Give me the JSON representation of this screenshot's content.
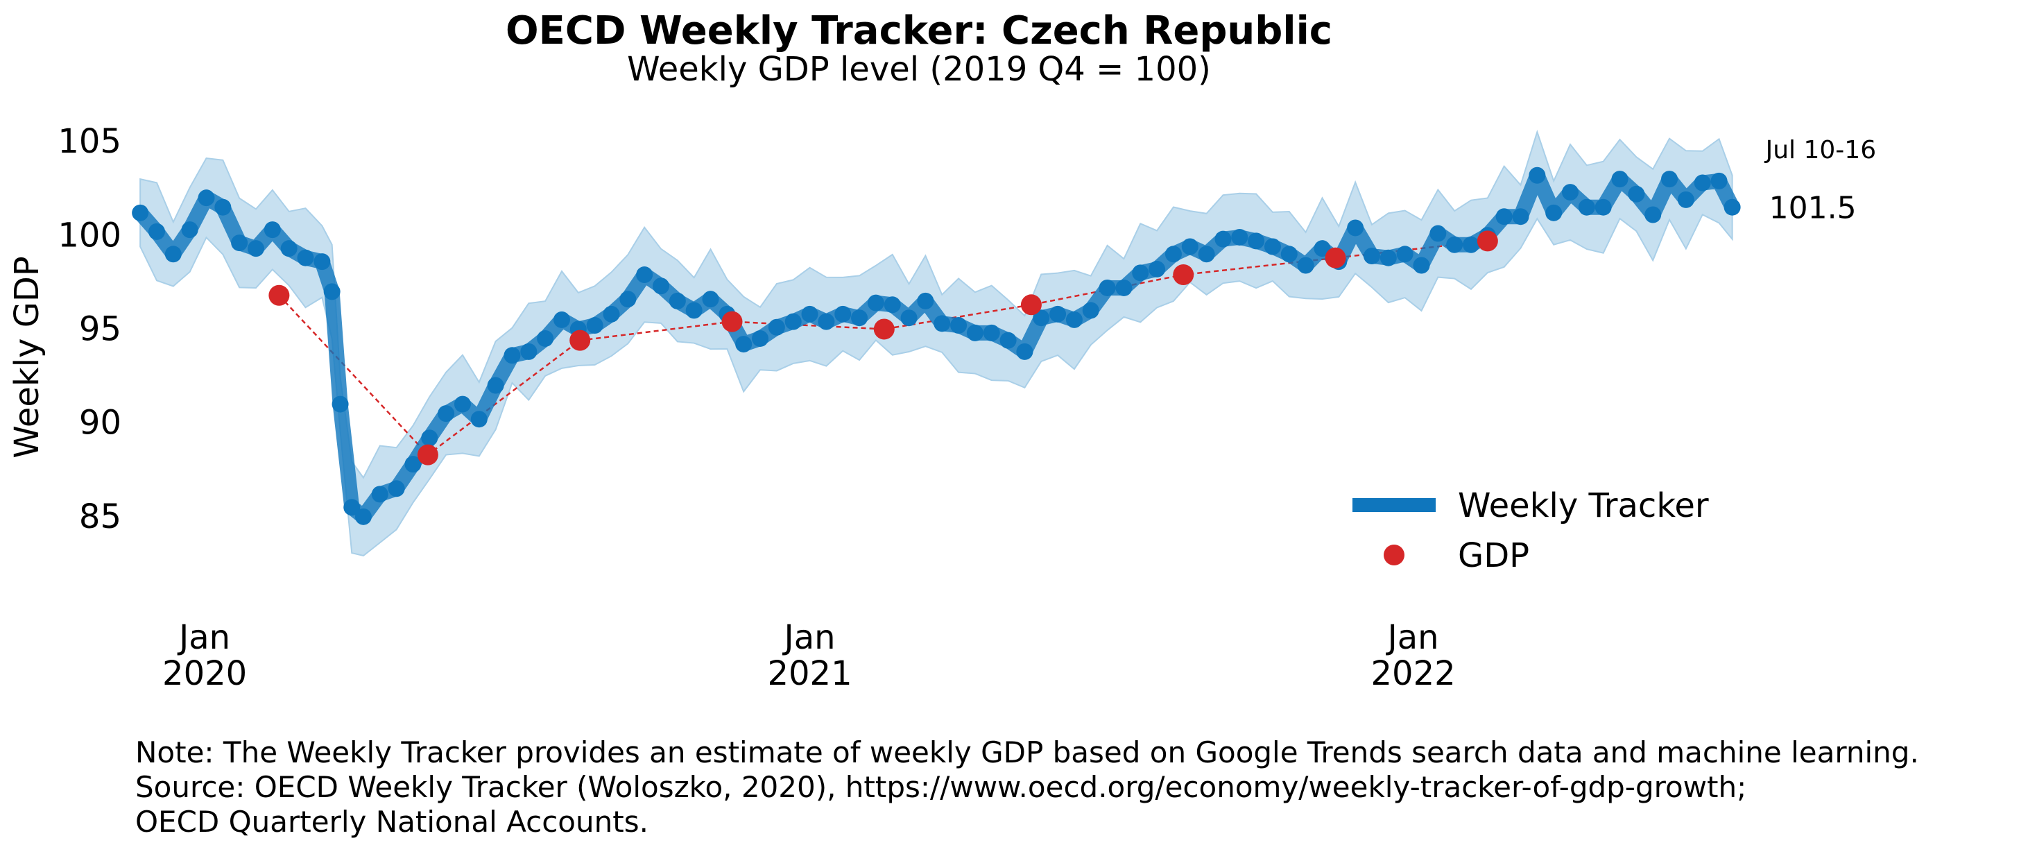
{
  "title": "OECD Weekly Tracker: Czech Republic",
  "subtitle": "Weekly GDP level (2019 Q4 = 100)",
  "notes": [
    "Note: The Weekly Tracker provides an estimate of weekly GDP based on Google Trends search data and machine learning.",
    "Source: OECD Weekly Tracker (Woloszko, 2020), https://www.oecd.org/economy/weekly-tracker-of-gdp-growth;",
    "OECD Quarterly National Accounts."
  ],
  "colors": {
    "tracker": "#0f76bd",
    "band": "#c7e0f0",
    "band_edge": "#a9cfe8",
    "gdp": "#d62728"
  },
  "chart_data": {
    "type": "line",
    "ylabel": "Weekly GDP",
    "xlim": [
      "2019-11-20",
      "2022-07-14"
    ],
    "ylim": [
      80,
      107
    ],
    "yticks": [
      85,
      90,
      95,
      100,
      105
    ],
    "xticks": [
      {
        "date": "2020-01-01",
        "label1": "Jan",
        "label2": "2020"
      },
      {
        "date": "2021-01-01",
        "label1": "Jan",
        "label2": "2021"
      },
      {
        "date": "2022-01-01",
        "label1": "Jan",
        "label2": "2022"
      }
    ],
    "last_point_annotation": {
      "period": "Jul 10-16",
      "value": "101.5"
    },
    "legend": {
      "position": "lower-right",
      "entries": [
        "Weekly Tracker",
        "GDP"
      ]
    },
    "series": [
      {
        "name": "Weekly Tracker",
        "kind": "line_with_band",
        "points": [
          [
            "2019-11-23",
            101.2
          ],
          [
            "2019-12-03",
            100.2
          ],
          [
            "2019-12-13",
            99.0
          ],
          [
            "2019-12-23",
            100.3
          ],
          [
            "2020-01-02",
            102.0
          ],
          [
            "2020-01-12",
            101.5
          ],
          [
            "2020-01-22",
            99.6
          ],
          [
            "2020-02-01",
            99.3
          ],
          [
            "2020-02-11",
            100.3
          ],
          [
            "2020-02-21",
            99.3
          ],
          [
            "2020-03-02",
            98.8
          ],
          [
            "2020-03-12",
            98.6
          ],
          [
            "2020-03-18",
            97.0
          ],
          [
            "2020-03-23",
            91.0
          ],
          [
            "2020-03-30",
            85.5
          ],
          [
            "2020-04-06",
            85.0
          ],
          [
            "2020-04-16",
            86.2
          ],
          [
            "2020-04-26",
            86.5
          ],
          [
            "2020-05-06",
            87.8
          ],
          [
            "2020-05-16",
            89.2
          ],
          [
            "2020-05-26",
            90.5
          ],
          [
            "2020-06-05",
            91.0
          ],
          [
            "2020-06-15",
            90.2
          ],
          [
            "2020-06-25",
            92.0
          ],
          [
            "2020-07-05",
            93.6
          ],
          [
            "2020-07-15",
            93.8
          ],
          [
            "2020-07-25",
            94.5
          ],
          [
            "2020-08-04",
            95.5
          ],
          [
            "2020-08-14",
            95.0
          ],
          [
            "2020-08-24",
            95.2
          ],
          [
            "2020-09-03",
            95.8
          ],
          [
            "2020-09-13",
            96.6
          ],
          [
            "2020-09-23",
            97.9
          ],
          [
            "2020-10-03",
            97.3
          ],
          [
            "2020-10-13",
            96.5
          ],
          [
            "2020-10-23",
            96.0
          ],
          [
            "2020-11-02",
            96.6
          ],
          [
            "2020-11-12",
            95.8
          ],
          [
            "2020-11-22",
            94.2
          ],
          [
            "2020-12-02",
            94.5
          ],
          [
            "2020-12-12",
            95.1
          ],
          [
            "2020-12-22",
            95.4
          ],
          [
            "2021-01-01",
            95.8
          ],
          [
            "2021-01-11",
            95.4
          ],
          [
            "2021-01-21",
            95.8
          ],
          [
            "2021-01-31",
            95.6
          ],
          [
            "2021-02-10",
            96.4
          ],
          [
            "2021-02-20",
            96.3
          ],
          [
            "2021-03-02",
            95.6
          ],
          [
            "2021-03-12",
            96.5
          ],
          [
            "2021-03-22",
            95.3
          ],
          [
            "2021-04-01",
            95.2
          ],
          [
            "2021-04-11",
            94.8
          ],
          [
            "2021-04-21",
            94.8
          ],
          [
            "2021-05-01",
            94.4
          ],
          [
            "2021-05-11",
            93.8
          ],
          [
            "2021-05-21",
            95.6
          ],
          [
            "2021-05-31",
            95.8
          ],
          [
            "2021-06-10",
            95.5
          ],
          [
            "2021-06-20",
            96.0
          ],
          [
            "2021-06-30",
            97.2
          ],
          [
            "2021-07-10",
            97.2
          ],
          [
            "2021-07-20",
            98.0
          ],
          [
            "2021-07-30",
            98.2
          ],
          [
            "2021-08-09",
            99.0
          ],
          [
            "2021-08-19",
            99.4
          ],
          [
            "2021-08-29",
            99.0
          ],
          [
            "2021-09-08",
            99.8
          ],
          [
            "2021-09-18",
            99.9
          ],
          [
            "2021-09-28",
            99.7
          ],
          [
            "2021-10-08",
            99.4
          ],
          [
            "2021-10-18",
            99.0
          ],
          [
            "2021-10-28",
            98.4
          ],
          [
            "2021-11-07",
            99.3
          ],
          [
            "2021-11-17",
            98.6
          ],
          [
            "2021-11-27",
            100.4
          ],
          [
            "2021-12-07",
            98.9
          ],
          [
            "2021-12-17",
            98.8
          ],
          [
            "2021-12-27",
            99.0
          ],
          [
            "2022-01-06",
            98.4
          ],
          [
            "2022-01-16",
            100.1
          ],
          [
            "2022-01-26",
            99.5
          ],
          [
            "2022-02-05",
            99.5
          ],
          [
            "2022-02-15",
            100.0
          ],
          [
            "2022-02-25",
            101.0
          ],
          [
            "2022-03-07",
            101.0
          ],
          [
            "2022-03-17",
            103.2
          ],
          [
            "2022-03-27",
            101.2
          ],
          [
            "2022-04-06",
            102.3
          ],
          [
            "2022-04-16",
            101.5
          ],
          [
            "2022-04-26",
            101.5
          ],
          [
            "2022-05-06",
            103.0
          ],
          [
            "2022-05-16",
            102.2
          ],
          [
            "2022-05-26",
            101.1
          ],
          [
            "2022-06-05",
            103.0
          ],
          [
            "2022-06-15",
            101.9
          ],
          [
            "2022-06-25",
            102.8
          ],
          [
            "2022-07-05",
            102.9
          ],
          [
            "2022-07-13",
            101.5
          ]
        ]
      },
      {
        "name": "GDP",
        "kind": "quarterly_points",
        "points": [
          [
            "2020-02-15",
            96.8
          ],
          [
            "2020-05-15",
            88.3
          ],
          [
            "2020-08-15",
            94.4
          ],
          [
            "2020-11-15",
            95.4
          ],
          [
            "2021-02-15",
            95.0
          ],
          [
            "2021-05-15",
            96.3
          ],
          [
            "2021-08-15",
            97.9
          ],
          [
            "2021-11-15",
            98.8
          ],
          [
            "2022-02-15",
            99.7
          ]
        ]
      }
    ]
  }
}
